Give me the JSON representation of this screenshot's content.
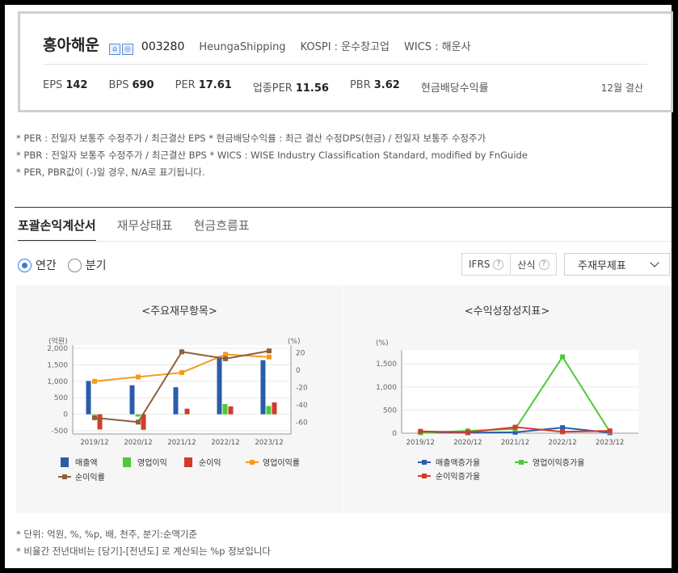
{
  "company": {
    "name": "흥아해운",
    "code": "003280",
    "english_name": "HeungaShipping",
    "market": "KOSPI : 운수창고업",
    "wics": "WICS : 해운사",
    "icons": [
      "home-icon",
      "globe-icon"
    ]
  },
  "metrics": [
    {
      "label": "EPS",
      "value": "142"
    },
    {
      "label": "BPS",
      "value": "690"
    },
    {
      "label": "PER",
      "value": "17.61"
    },
    {
      "label": "업종PER",
      "value": "11.56"
    },
    {
      "label": "PBR",
      "value": "3.62"
    },
    {
      "label": "현금배당수익률",
      "value": ""
    }
  ],
  "settlement": "12월 결산",
  "notes": [
    "* PER : 전일자 보통주 수정주가 / 최근결산 EPS * 현금배당수익률 : 최근 결산 수정DPS(현금) / 전일자 보통주 수정주가",
    "* PBR : 전일자 보통주 수정주가 / 최근결산 BPS * WICS : WISE Industry Classification Standard, modified by FnGuide",
    "* PER, PBR값이 (-)일 경우, N/A로 표기됩니다."
  ],
  "tabs": [
    {
      "label": "포괄손익계산서",
      "active": true
    },
    {
      "label": "재무상태표",
      "active": false
    },
    {
      "label": "현금흐름표",
      "active": false
    }
  ],
  "period": {
    "annual": "연간",
    "quarter": "분기",
    "selected": "연간"
  },
  "buttons": {
    "ifrs": "IFRS",
    "calc": "산식",
    "help": "?"
  },
  "select": {
    "value": "주재무제표"
  },
  "panels": {
    "left_title": "<주요재무항목>",
    "right_title": "<수익성장성지표>"
  },
  "chart_data": [
    {
      "type": "bar",
      "title": "<주요재무항목>",
      "categories": [
        "2019/12",
        "2020/12",
        "2021/12",
        "2022/12",
        "2023/12"
      ],
      "y_left_label": "(억원)",
      "y_right_label": "(%)",
      "ylim_left": [
        -500,
        2000
      ],
      "yticks_left": [
        "2,000",
        "1,500",
        "1,000",
        "500",
        "0",
        "-500"
      ],
      "ylim_right": [
        -70,
        25
      ],
      "yticks_right": [
        "20",
        "0",
        "-20",
        "-40",
        "-60"
      ],
      "series": [
        {
          "name": "매출액",
          "kind": "bar",
          "axis": "left",
          "color": "#2a5caa",
          "values": [
            1010,
            880,
            820,
            1760,
            1640
          ]
        },
        {
          "name": "영업이익",
          "kind": "bar",
          "axis": "left",
          "color": "#4fc83a",
          "values": [
            -20,
            -70,
            0,
            310,
            250
          ]
        },
        {
          "name": "순이익",
          "kind": "bar",
          "axis": "left",
          "color": "#d23b2a",
          "values": [
            -460,
            -470,
            170,
            240,
            360
          ]
        },
        {
          "name": "영업이익률",
          "kind": "line",
          "axis": "right",
          "color": "#f59a1c",
          "values": [
            -13,
            -8,
            -3,
            18,
            15
          ]
        },
        {
          "name": "순이익률",
          "kind": "line",
          "axis": "right",
          "color": "#8c6239",
          "values": [
            -55,
            -60,
            21,
            13,
            22
          ]
        }
      ],
      "legend": "bottom"
    },
    {
      "type": "line",
      "title": "<수익성장성지표>",
      "categories": [
        "2019/12",
        "2020/12",
        "2021/12",
        "2022/12",
        "2023/12"
      ],
      "y_label": "(%)",
      "ylim": [
        0,
        1800
      ],
      "yticks": [
        "1,500",
        "1,000",
        "500",
        "0"
      ],
      "series": [
        {
          "name": "매출액증가율",
          "color": "#2a5caa",
          "values": [
            20,
            10,
            20,
            120,
            10
          ]
        },
        {
          "name": "영업이익증가율",
          "color": "#4fc83a",
          "values": [
            10,
            50,
            90,
            1650,
            30
          ]
        },
        {
          "name": "순이익증가율",
          "color": "#d23b2a",
          "values": [
            40,
            20,
            130,
            30,
            50
          ]
        }
      ],
      "legend": "bottom"
    }
  ],
  "bottom_notes": [
    "* 단위: 억원, %, %p, 배, 천주, 분기:순액기준",
    "* 비율간 전년대비는 [당기]-[전년도] 로 계산되는 %p 정보입니다"
  ]
}
